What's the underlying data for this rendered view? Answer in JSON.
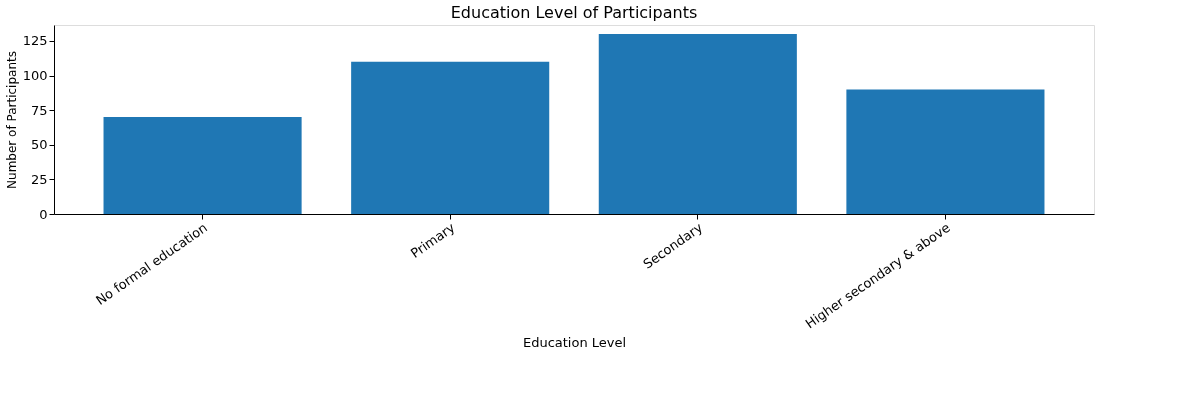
{
  "chart_data": {
    "type": "bar",
    "title": "Education Level of Participants",
    "xlabel": "Education Level",
    "ylabel": "Number of Participants",
    "categories": [
      "No formal education",
      "Primary",
      "Secondary",
      "Higher secondary & above"
    ],
    "values": [
      70,
      110,
      130,
      90
    ],
    "color": "#1f77b4",
    "ylim": [
      0,
      136.5
    ],
    "yticks": [
      0,
      25,
      50,
      75,
      100,
      125
    ],
    "grid": false
  }
}
